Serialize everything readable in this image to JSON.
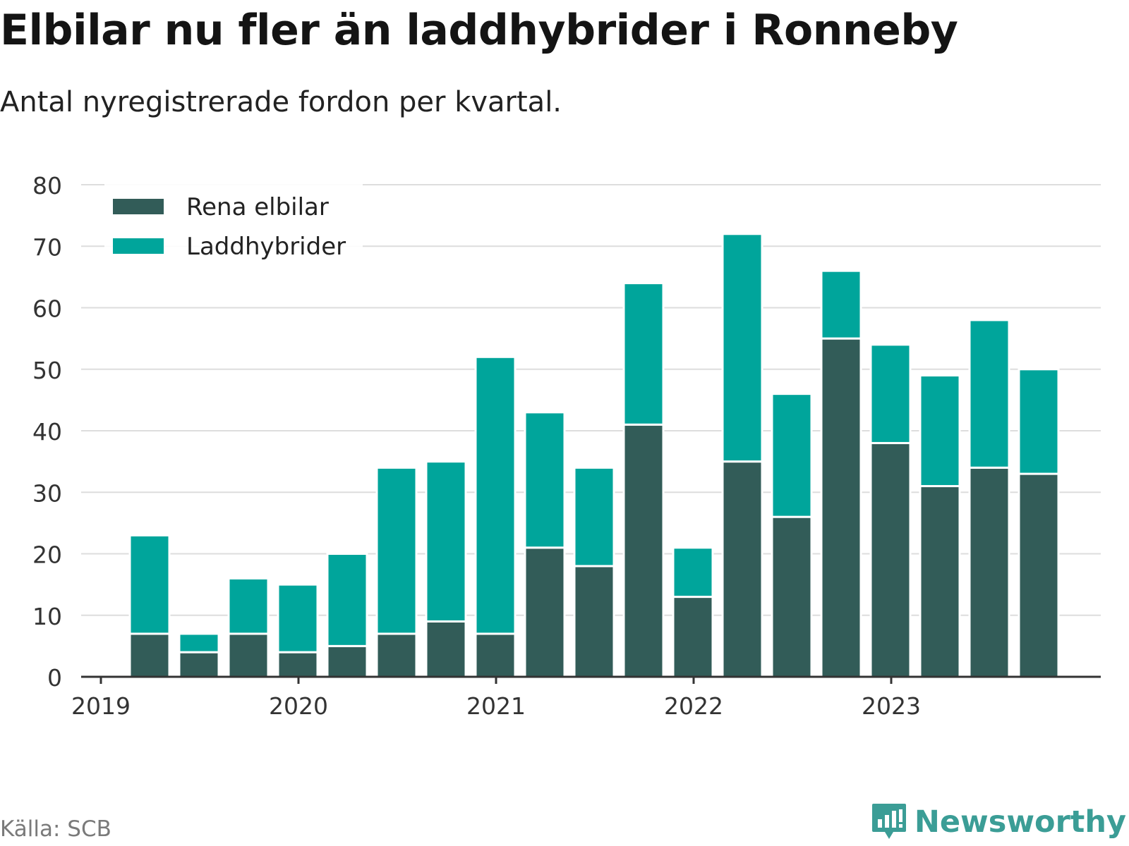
{
  "header": {
    "title": "Elbilar nu fler än laddhybrider i Ronneby",
    "subtitle": "Antal nyregistrerade fordon per kvartal."
  },
  "footer": {
    "source": "Källa: SCB",
    "brand": "Newsworthy",
    "brand_icon": "newsworthy-logo-icon"
  },
  "colors": {
    "electric": "#325c58",
    "hybrid": "#00a59b",
    "grid": "#dddddd",
    "axis": "#333333",
    "brand": "#3b9d96"
  },
  "chart_data": {
    "type": "bar",
    "stacked": true,
    "title": "Elbilar nu fler än laddhybrider i Ronneby",
    "subtitle": "Antal nyregistrerade fordon per kvartal.",
    "xlabel": "",
    "ylabel": "",
    "ylim": [
      0,
      80
    ],
    "yticks": [
      0,
      10,
      20,
      30,
      40,
      50,
      60,
      70,
      80
    ],
    "year_ticks": [
      "2019",
      "2020",
      "2021",
      "2022",
      "2023"
    ],
    "categories": [
      "2019 Q2",
      "2019 Q3",
      "2019 Q4",
      "2020 Q1",
      "2020 Q2",
      "2020 Q3",
      "2020 Q4",
      "2021 Q1",
      "2021 Q2",
      "2021 Q3",
      "2021 Q4",
      "2022 Q1",
      "2022 Q2",
      "2022 Q3",
      "2022 Q4",
      "2023 Q1",
      "2023 Q2",
      "2023 Q3",
      "2023 Q4"
    ],
    "series": [
      {
        "name": "Rena elbilar",
        "values": [
          7,
          4,
          7,
          4,
          5,
          7,
          9,
          7,
          21,
          18,
          41,
          13,
          35,
          26,
          55,
          38,
          31,
          34,
          33
        ]
      },
      {
        "name": "Laddhybrider",
        "values": [
          16,
          3,
          9,
          11,
          15,
          27,
          26,
          45,
          22,
          16,
          23,
          8,
          37,
          20,
          11,
          16,
          18,
          24,
          17
        ]
      }
    ],
    "legend_position": "top-left",
    "grid": true
  }
}
